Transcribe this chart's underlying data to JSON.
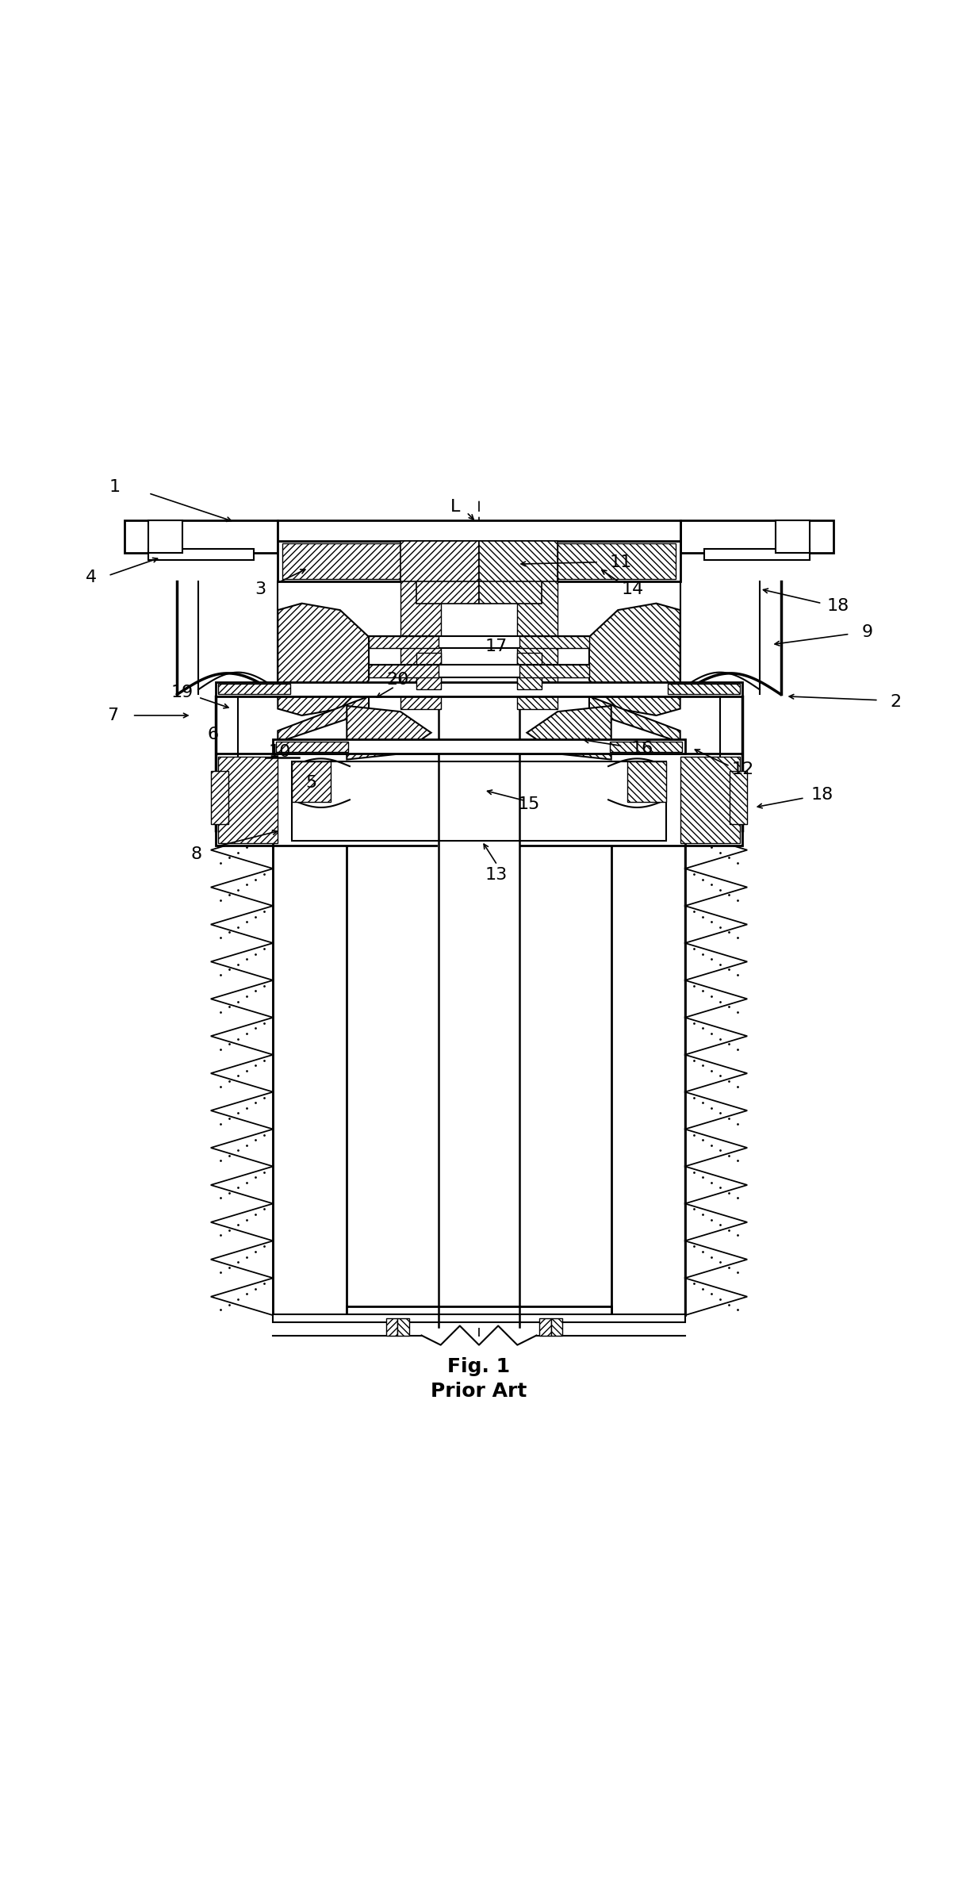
{
  "fig_title": "Fig. 1",
  "fig_subtitle": "Prior Art",
  "title_fontsize": 18,
  "subtitle_fontsize": 18,
  "background_color": "#ffffff",
  "line_color": "#000000",
  "fig_width": 12.08,
  "fig_height": 23.79
}
